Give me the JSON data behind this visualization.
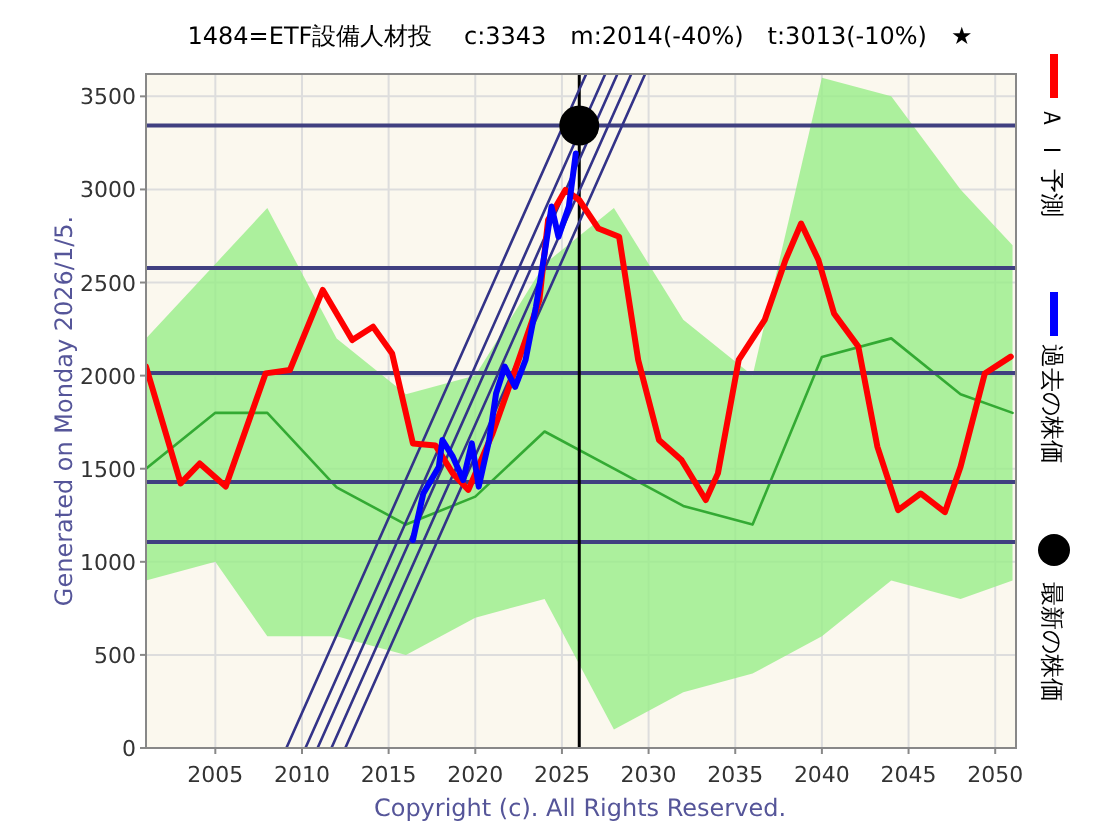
{
  "chart_data": {
    "type": "line",
    "title": "1484=ETF設備人材投　 c:3343　m:2014(-40%)　t:3013(-10%)　★",
    "xlim": [
      2001,
      2051.2
    ],
    "ylim": [
      0,
      3620
    ],
    "xticks": [
      2005,
      2010,
      2015,
      2020,
      2025,
      2030,
      2035,
      2040,
      2045,
      2050
    ],
    "yticks": [
      0,
      500,
      1000,
      1500,
      2000,
      2500,
      3000,
      3500
    ],
    "grid": true,
    "legend": "right",
    "line_style": "solid",
    "annotations": [
      "Generated on Monday 2026/1/5.",
      "Copyright (c). All Rights Reserved."
    ],
    "ref_lines": [
      {
        "axis": "y",
        "value": 3343,
        "color": "#404080"
      },
      {
        "axis": "y",
        "value": 2578,
        "color": "#404080"
      },
      {
        "axis": "y",
        "value": 2014,
        "color": "#404080"
      },
      {
        "axis": "y",
        "value": 1428,
        "color": "#404080"
      },
      {
        "axis": "y",
        "value": 1106,
        "color": "#404080"
      },
      {
        "axis": "x",
        "value": 2026,
        "color": "#000000"
      }
    ],
    "series": [
      {
        "color": "#33aa33",
        "x": [
          2001,
          2005,
          2008,
          2012,
          2016,
          2020,
          2024,
          2028,
          2032,
          2036,
          2040,
          2044,
          2048,
          2051
        ],
        "values": [
          1500,
          1800,
          1800,
          1400,
          1200,
          1350,
          1700,
          1500,
          1300,
          1200,
          2100,
          2200,
          1900,
          1800
        ],
        "lower": [
          900,
          1000,
          600,
          600,
          500,
          700,
          800,
          100,
          300,
          400,
          600,
          900,
          800,
          900
        ],
        "upper": [
          2200,
          2600,
          2900,
          2200,
          1900,
          2000,
          2600,
          2900,
          2300,
          2000,
          3600,
          3500,
          3000,
          2700
        ]
      },
      {
        "color": "#333388",
        "x": [
          2009.1,
          2026.4
        ],
        "values": [
          0,
          3620
        ]
      },
      {
        "color": "#333388",
        "x": [
          2010.2,
          2027.5
        ],
        "values": [
          0,
          3620
        ]
      },
      {
        "color": "#333388",
        "x": [
          2010.9,
          2028.2
        ],
        "values": [
          0,
          3620
        ]
      },
      {
        "color": "#333388",
        "x": [
          2011.7,
          2029.0
        ],
        "values": [
          0,
          3620
        ]
      },
      {
        "color": "#333388",
        "x": [
          2012.5,
          2029.8
        ],
        "values": [
          0,
          3620
        ]
      },
      {
        "name": "Ａ Ｉ 予測",
        "color": "#ff0000",
        "x": [
          2001.0,
          2003.0,
          2004.1,
          2005.6,
          2007.9,
          2009.3,
          2011.2,
          2012.9,
          2014.1,
          2015.2,
          2016.4,
          2017.7,
          2018.7,
          2019.6,
          2021.0,
          2022.5,
          2023.7,
          2024.2,
          2025.2,
          2026.0,
          2027.1,
          2028.3,
          2029.4,
          2030.6,
          2031.9,
          2033.3,
          2034.0,
          2035.2,
          2036.7,
          2037.9,
          2038.8,
          2039.8,
          2040.7,
          2042.1,
          2043.2,
          2044.4,
          2045.7,
          2047.1,
          2048.0,
          2049.4,
          2050.9
        ],
        "values": [
          2048,
          1421,
          1528,
          1404,
          2012,
          2030,
          2460,
          2191,
          2263,
          2119,
          1636,
          1625,
          1475,
          1386,
          1690,
          2084,
          2406,
          2836,
          2997,
          2943,
          2790,
          2746,
          2084,
          1654,
          1547,
          1332,
          1475,
          2084,
          2299,
          2621,
          2817,
          2621,
          2334,
          2156,
          1619,
          1278,
          1367,
          1267,
          1511,
          2012,
          2102
        ]
      },
      {
        "name": "過去の株価",
        "color": "#0000ff",
        "x": [
          2016.4,
          2017.0,
          2017.9,
          2018.1,
          2018.7,
          2019.3,
          2019.8,
          2020.2,
          2020.8,
          2021.2,
          2021.7,
          2022.3,
          2022.9,
          2023.5,
          2024.0,
          2024.4,
          2024.8,
          2025.4,
          2025.8
        ],
        "values": [
          1117,
          1367,
          1511,
          1654,
          1565,
          1439,
          1636,
          1404,
          1654,
          1904,
          2048,
          1940,
          2084,
          2370,
          2656,
          2908,
          2746,
          2908,
          3193
        ]
      },
      {
        "type": "scatter",
        "name": "最新の株価",
        "color": "#000000",
        "marker": "circle",
        "x": [
          2026
        ],
        "values": [
          3343
        ]
      }
    ]
  }
}
